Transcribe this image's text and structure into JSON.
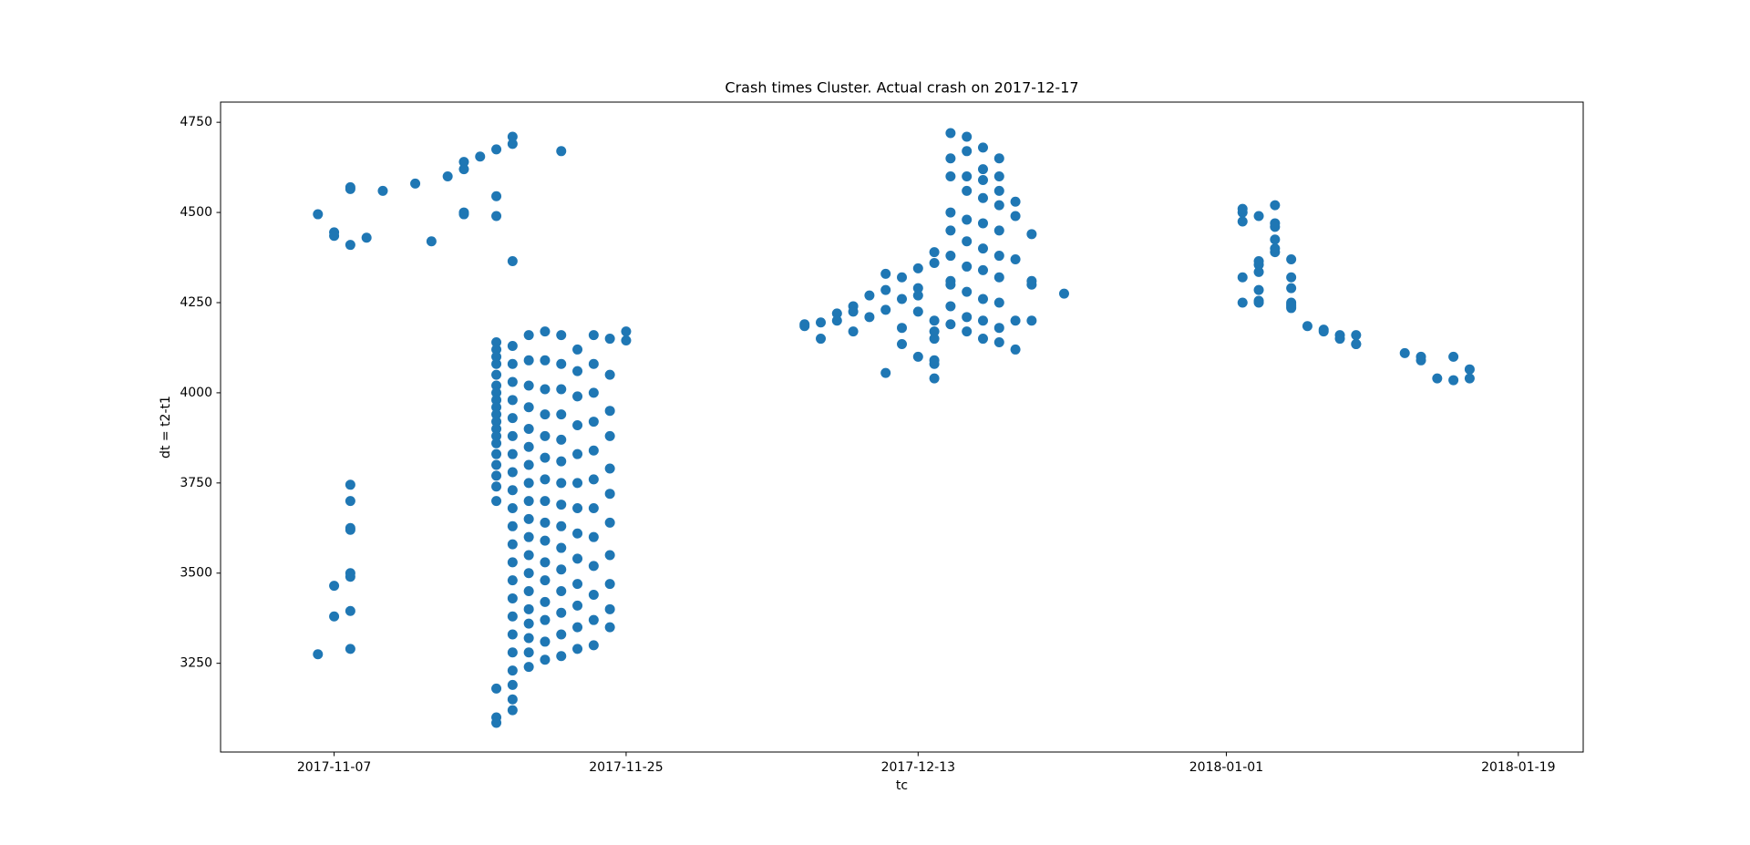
{
  "chart_data": {
    "type": "scatter",
    "title": "Crash times Cluster. Actual crash on 2017-12-17",
    "x_label": "tc",
    "y_label": "dt = t2-t1",
    "color": "#1f77b4",
    "grid": false,
    "xlim": [
      "2017-10-31",
      "2018-01-23"
    ],
    "xticks": [
      "2017-11-07",
      "2017-11-25",
      "2017-12-13",
      "2018-01-01",
      "2018-01-19"
    ],
    "ylim": [
      3004,
      4806
    ],
    "yticks": [
      3250,
      3500,
      3750,
      4000,
      4250,
      4500,
      4750
    ],
    "x": [
      "2017-11-06",
      "2017-11-06",
      "2017-11-07",
      "2017-11-07",
      "2017-11-07",
      "2017-11-07",
      "2017-11-08",
      "2017-11-08",
      "2017-11-08",
      "2017-11-08",
      "2017-11-08",
      "2017-11-08",
      "2017-11-08",
      "2017-11-08",
      "2017-11-08",
      "2017-11-08",
      "2017-11-08",
      "2017-11-09",
      "2017-11-10",
      "2017-11-12",
      "2017-11-13",
      "2017-11-14",
      "2017-11-15",
      "2017-11-15",
      "2017-11-15",
      "2017-11-15",
      "2017-11-16",
      "2017-11-17",
      "2017-11-17",
      "2017-11-17",
      "2017-11-17",
      "2017-11-17",
      "2017-11-17",
      "2017-11-17",
      "2017-11-17",
      "2017-11-17",
      "2017-11-17",
      "2017-11-17",
      "2017-11-17",
      "2017-11-17",
      "2017-11-17",
      "2017-11-17",
      "2017-11-17",
      "2017-11-17",
      "2017-11-17",
      "2017-11-17",
      "2017-11-17",
      "2017-11-17",
      "2017-11-17",
      "2017-11-17",
      "2017-11-17",
      "2017-11-17",
      "2017-11-18",
      "2017-11-18",
      "2017-11-18",
      "2017-11-18",
      "2017-11-18",
      "2017-11-18",
      "2017-11-18",
      "2017-11-18",
      "2017-11-18",
      "2017-11-18",
      "2017-11-18",
      "2017-11-18",
      "2017-11-18",
      "2017-11-18",
      "2017-11-18",
      "2017-11-18",
      "2017-11-18",
      "2017-11-18",
      "2017-11-18",
      "2017-11-18",
      "2017-11-18",
      "2017-11-18",
      "2017-11-18",
      "2017-11-18",
      "2017-11-18",
      "2017-11-19",
      "2017-11-19",
      "2017-11-19",
      "2017-11-19",
      "2017-11-19",
      "2017-11-19",
      "2017-11-19",
      "2017-11-19",
      "2017-11-19",
      "2017-11-19",
      "2017-11-19",
      "2017-11-19",
      "2017-11-19",
      "2017-11-19",
      "2017-11-19",
      "2017-11-19",
      "2017-11-19",
      "2017-11-19",
      "2017-11-19",
      "2017-11-20",
      "2017-11-20",
      "2017-11-20",
      "2017-11-20",
      "2017-11-20",
      "2017-11-20",
      "2017-11-20",
      "2017-11-20",
      "2017-11-20",
      "2017-11-20",
      "2017-11-20",
      "2017-11-20",
      "2017-11-20",
      "2017-11-20",
      "2017-11-20",
      "2017-11-20",
      "2017-11-21",
      "2017-11-21",
      "2017-11-21",
      "2017-11-21",
      "2017-11-21",
      "2017-11-21",
      "2017-11-21",
      "2017-11-21",
      "2017-11-21",
      "2017-11-21",
      "2017-11-21",
      "2017-11-21",
      "2017-11-21",
      "2017-11-21",
      "2017-11-21",
      "2017-11-21",
      "2017-11-22",
      "2017-11-22",
      "2017-11-22",
      "2017-11-22",
      "2017-11-22",
      "2017-11-22",
      "2017-11-22",
      "2017-11-22",
      "2017-11-22",
      "2017-11-22",
      "2017-11-22",
      "2017-11-22",
      "2017-11-22",
      "2017-11-23",
      "2017-11-23",
      "2017-11-23",
      "2017-11-23",
      "2017-11-23",
      "2017-11-23",
      "2017-11-23",
      "2017-11-23",
      "2017-11-23",
      "2017-11-23",
      "2017-11-23",
      "2017-11-23",
      "2017-11-24",
      "2017-11-24",
      "2017-11-24",
      "2017-11-24",
      "2017-11-24",
      "2017-11-24",
      "2017-11-24",
      "2017-11-24",
      "2017-11-24",
      "2017-11-24",
      "2017-11-24",
      "2017-11-25",
      "2017-11-25",
      "2017-12-06",
      "2017-12-06",
      "2017-12-07",
      "2017-12-07",
      "2017-12-08",
      "2017-12-08",
      "2017-12-09",
      "2017-12-09",
      "2017-12-09",
      "2017-12-10",
      "2017-12-10",
      "2017-12-11",
      "2017-12-11",
      "2017-12-11",
      "2017-12-11",
      "2017-12-12",
      "2017-12-12",
      "2017-12-12",
      "2017-12-12",
      "2017-12-13",
      "2017-12-13",
      "2017-12-13",
      "2017-12-13",
      "2017-12-13",
      "2017-12-14",
      "2017-12-14",
      "2017-12-14",
      "2017-12-14",
      "2017-12-14",
      "2017-12-14",
      "2017-12-14",
      "2017-12-14",
      "2017-12-15",
      "2017-12-15",
      "2017-12-15",
      "2017-12-15",
      "2017-12-15",
      "2017-12-15",
      "2017-12-15",
      "2017-12-15",
      "2017-12-15",
      "2017-12-15",
      "2017-12-16",
      "2017-12-16",
      "2017-12-16",
      "2017-12-16",
      "2017-12-16",
      "2017-12-16",
      "2017-12-16",
      "2017-12-16",
      "2017-12-16",
      "2017-12-16",
      "2017-12-17",
      "2017-12-17",
      "2017-12-17",
      "2017-12-17",
      "2017-12-17",
      "2017-12-17",
      "2017-12-17",
      "2017-12-17",
      "2017-12-17",
      "2017-12-17",
      "2017-12-18",
      "2017-12-18",
      "2017-12-18",
      "2017-12-18",
      "2017-12-18",
      "2017-12-18",
      "2017-12-18",
      "2017-12-18",
      "2017-12-18",
      "2017-12-18",
      "2017-12-19",
      "2017-12-19",
      "2017-12-19",
      "2017-12-19",
      "2017-12-19",
      "2017-12-20",
      "2017-12-20",
      "2017-12-20",
      "2017-12-20",
      "2017-12-22",
      "2018-01-02",
      "2018-01-02",
      "2018-01-02",
      "2018-01-02",
      "2018-01-02",
      "2018-01-03",
      "2018-01-03",
      "2018-01-03",
      "2018-01-03",
      "2018-01-03",
      "2018-01-03",
      "2018-01-03",
      "2018-01-04",
      "2018-01-04",
      "2018-01-04",
      "2018-01-04",
      "2018-01-04",
      "2018-01-04",
      "2018-01-05",
      "2018-01-05",
      "2018-01-05",
      "2018-01-05",
      "2018-01-05",
      "2018-01-05",
      "2018-01-05",
      "2018-01-06",
      "2018-01-07",
      "2018-01-07",
      "2018-01-08",
      "2018-01-08",
      "2018-01-09",
      "2018-01-09",
      "2018-01-09",
      "2018-01-12",
      "2018-01-13",
      "2018-01-13",
      "2018-01-14",
      "2018-01-15",
      "2018-01-15",
      "2018-01-16",
      "2018-01-16"
    ],
    "values": [
      4495,
      3275,
      4445,
      4435,
      3465,
      3380,
      4410,
      4570,
      4565,
      3500,
      3490,
      3395,
      3700,
      3745,
      3625,
      3290,
      3620,
      4430,
      4560,
      4580,
      4420,
      4600,
      4620,
      4640,
      4500,
      4495,
      4655,
      4675,
      4545,
      4490,
      3085,
      3100,
      3180,
      4140,
      4120,
      4100,
      4080,
      4050,
      4020,
      4000,
      3980,
      3960,
      3940,
      3920,
      3900,
      3880,
      3860,
      3830,
      3800,
      3770,
      3740,
      3700,
      4690,
      4365,
      4710,
      3120,
      3150,
      3190,
      3230,
      3280,
      3330,
      3380,
      3430,
      3480,
      3530,
      3580,
      3630,
      3680,
      3730,
      3780,
      3830,
      3880,
      3930,
      3980,
      4030,
      4080,
      4130,
      3240,
      3280,
      3320,
      3360,
      3400,
      3450,
      3500,
      3550,
      3600,
      3650,
      3700,
      3750,
      3800,
      3850,
      3900,
      3960,
      4020,
      4090,
      4160,
      3260,
      3310,
      3370,
      3420,
      3480,
      3530,
      3590,
      3640,
      3700,
      3760,
      3820,
      3880,
      3940,
      4010,
      4090,
      4170,
      4670,
      3270,
      3330,
      3390,
      3450,
      3510,
      3570,
      3630,
      3690,
      3750,
      3810,
      3870,
      3940,
      4010,
      4080,
      4160,
      3290,
      3350,
      3410,
      3470,
      3540,
      3610,
      3680,
      3750,
      3830,
      3910,
      3990,
      4060,
      4120,
      3300,
      3370,
      3440,
      3520,
      3600,
      3680,
      3760,
      3840,
      3920,
      4000,
      4080,
      4160,
      3350,
      3400,
      3470,
      3550,
      3640,
      3720,
      3790,
      3880,
      3950,
      4050,
      4150,
      4170,
      4145,
      4190,
      4185,
      4195,
      4150,
      4220,
      4200,
      4170,
      4225,
      4240,
      4210,
      4270,
      4055,
      4285,
      4230,
      4330,
      4260,
      4180,
      4135,
      4320,
      4225,
      4100,
      4290,
      4345,
      4270,
      4150,
      4080,
      4040,
      4200,
      4360,
      4390,
      4170,
      4090,
      4310,
      4720,
      4600,
      4500,
      4450,
      4380,
      4300,
      4240,
      4190,
      4650,
      4710,
      4670,
      4560,
      4480,
      4420,
      4350,
      4280,
      4210,
      4170,
      4600,
      4680,
      4620,
      4540,
      4470,
      4400,
      4340,
      4260,
      4200,
      4150,
      4590,
      4650,
      4600,
      4520,
      4450,
      4380,
      4320,
      4250,
      4180,
      4140,
      4560,
      4530,
      4490,
      4370,
      4200,
      4120,
      4300,
      4440,
      4200,
      4310,
      4275,
      4475,
      4250,
      4500,
      4510,
      4320,
      4490,
      4355,
      4255,
      4365,
      4250,
      4285,
      4335,
      4470,
      4520,
      4390,
      4460,
      4425,
      4400,
      4320,
      4370,
      4245,
      4290,
      4250,
      4235,
      4240,
      4185,
      4175,
      4170,
      4160,
      4150,
      4135,
      4135,
      4160,
      4110,
      4100,
      4090,
      4040,
      4035,
      4100,
      4065,
      4040
    ]
  }
}
